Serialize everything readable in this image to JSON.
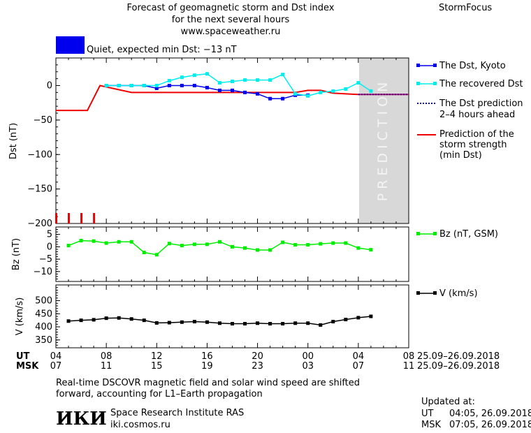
{
  "header": {
    "title_line1": "Forecast of geomagnetic storm and Dst index",
    "title_line2": "for the next several hours",
    "url": "www.spaceweather.ru",
    "brand": "StormFocus"
  },
  "status": {
    "text": "Quiet, expected min Dst: −13 nT",
    "color": "#0000ee"
  },
  "prediction_label": "PREDICTION",
  "legend": {
    "dst_kyoto": "The Dst, Kyoto",
    "dst_recovered": "The recovered Dst",
    "dst_prediction_1": "The Dst prediction",
    "dst_prediction_2": "2–4 hours ahead",
    "storm_1": "Prediction of the",
    "storm_2": "storm strength",
    "storm_3": "(min Dst)",
    "bz": "Bz (nT, GSM)",
    "v": "V (km/s)"
  },
  "time_axis": {
    "ut_label": "UT",
    "msk_label": "MSK",
    "ut_ticks": [
      "04",
      "08",
      "12",
      "16",
      "20",
      "00",
      "04",
      "08"
    ],
    "msk_ticks": [
      "07",
      "11",
      "15",
      "19",
      "23",
      "03",
      "07",
      "11"
    ],
    "ut_range": "25.09–26.09.2018",
    "msk_range": "25.09–26.09.2018"
  },
  "footer": {
    "note_line1": "Real-time DSCOVR magnetic field and solar wind speed are shifted",
    "note_line2": "forward, accounting for L1–Earth propagation",
    "logo": "ИКИ",
    "institute": "Space Research Institute RAS",
    "site": "iki.cosmos.ru",
    "updated_label": "Updated at:",
    "updated_ut_label": "UT",
    "updated_ut": "04:05, 26.09.2018",
    "updated_msk_label": "MSK",
    "updated_msk": "07:05, 26.09.2018"
  },
  "chart_data": [
    {
      "type": "line",
      "ylabel": "Dst (nT)",
      "x_unit": "UT hours since 04:00 25.09.2018",
      "xlim": [
        0,
        28
      ],
      "ylim": [
        -200,
        40
      ],
      "yticks": [
        0,
        -50,
        -100,
        -150,
        -200
      ],
      "prediction_start": 24,
      "series": [
        {
          "name": "The Dst, Kyoto",
          "color": "#0000ee",
          "x": [
            4,
            5,
            6,
            7,
            8,
            9,
            10,
            11,
            12,
            13,
            14,
            15,
            16,
            17,
            18,
            19,
            20
          ],
          "y": [
            0,
            0,
            0,
            0,
            -4,
            0,
            0,
            0,
            -3,
            -7,
            -7,
            -10,
            -12,
            -19,
            -19,
            -14,
            -14
          ]
        },
        {
          "name": "The recovered Dst",
          "color": "#00eeee",
          "x": [
            4,
            5,
            6,
            7,
            8,
            9,
            10,
            11,
            12,
            13,
            14,
            15,
            16,
            17,
            18,
            19,
            20,
            21,
            22,
            23,
            24,
            25
          ],
          "y": [
            0,
            0,
            0,
            0,
            0,
            7,
            12,
            15,
            17,
            4,
            6,
            8,
            8,
            8,
            16,
            -12,
            -15,
            -10,
            -8,
            -5,
            4,
            -8
          ]
        },
        {
          "name": "The Dst prediction 2–4 hours ahead",
          "color": "#0000ee",
          "x": [
            24,
            28
          ],
          "y": [
            -13,
            -13
          ]
        },
        {
          "name": "Prediction of the storm strength (min Dst)",
          "color": "#ee0000",
          "x": [
            0,
            2.5,
            3.5,
            6,
            16,
            19,
            20,
            21,
            22,
            24,
            28
          ],
          "y": [
            -36,
            -36,
            0,
            -10,
            -10,
            -10,
            -7,
            -7,
            -11,
            -13,
            -13
          ]
        }
      ],
      "kp_bars_x": [
        0,
        1,
        2,
        3
      ]
    },
    {
      "type": "line",
      "ylabel": "Bz (nT)",
      "xlim": [
        0,
        28
      ],
      "ylim": [
        -14,
        8
      ],
      "yticks": [
        5,
        0,
        -5,
        -10
      ],
      "series": [
        {
          "name": "Bz (nT, GSM)",
          "color": "#00ee00",
          "x": [
            1,
            2,
            3,
            4,
            5,
            6,
            7,
            8,
            9,
            10,
            11,
            12,
            13,
            14,
            15,
            16,
            17,
            18,
            19,
            20,
            21,
            22,
            23,
            24,
            25
          ],
          "y": [
            0.5,
            2.5,
            2.3,
            1.5,
            2,
            2,
            -2.3,
            -3.2,
            1.3,
            0.5,
            1,
            1,
            2,
            0,
            -0.5,
            -1.3,
            -1.3,
            1.8,
            0.8,
            0.8,
            1.2,
            1.5,
            1.5,
            -0.5,
            -1.2
          ]
        }
      ]
    },
    {
      "type": "line",
      "ylabel": "V (km/s)",
      "xlim": [
        0,
        28
      ],
      "ylim": [
        320,
        560
      ],
      "yticks": [
        500,
        450,
        400,
        350
      ],
      "series": [
        {
          "name": "V (km/s)",
          "color": "#000000",
          "x": [
            1,
            2,
            3,
            4,
            5,
            6,
            7,
            8,
            9,
            10,
            11,
            12,
            13,
            14,
            15,
            16,
            17,
            18,
            19,
            20,
            21,
            22,
            23,
            24,
            25
          ],
          "y": [
            422,
            425,
            427,
            433,
            434,
            430,
            425,
            415,
            416,
            418,
            420,
            418,
            414,
            412,
            412,
            414,
            412,
            412,
            414,
            414,
            407,
            420,
            428,
            435,
            440
          ]
        }
      ]
    }
  ]
}
